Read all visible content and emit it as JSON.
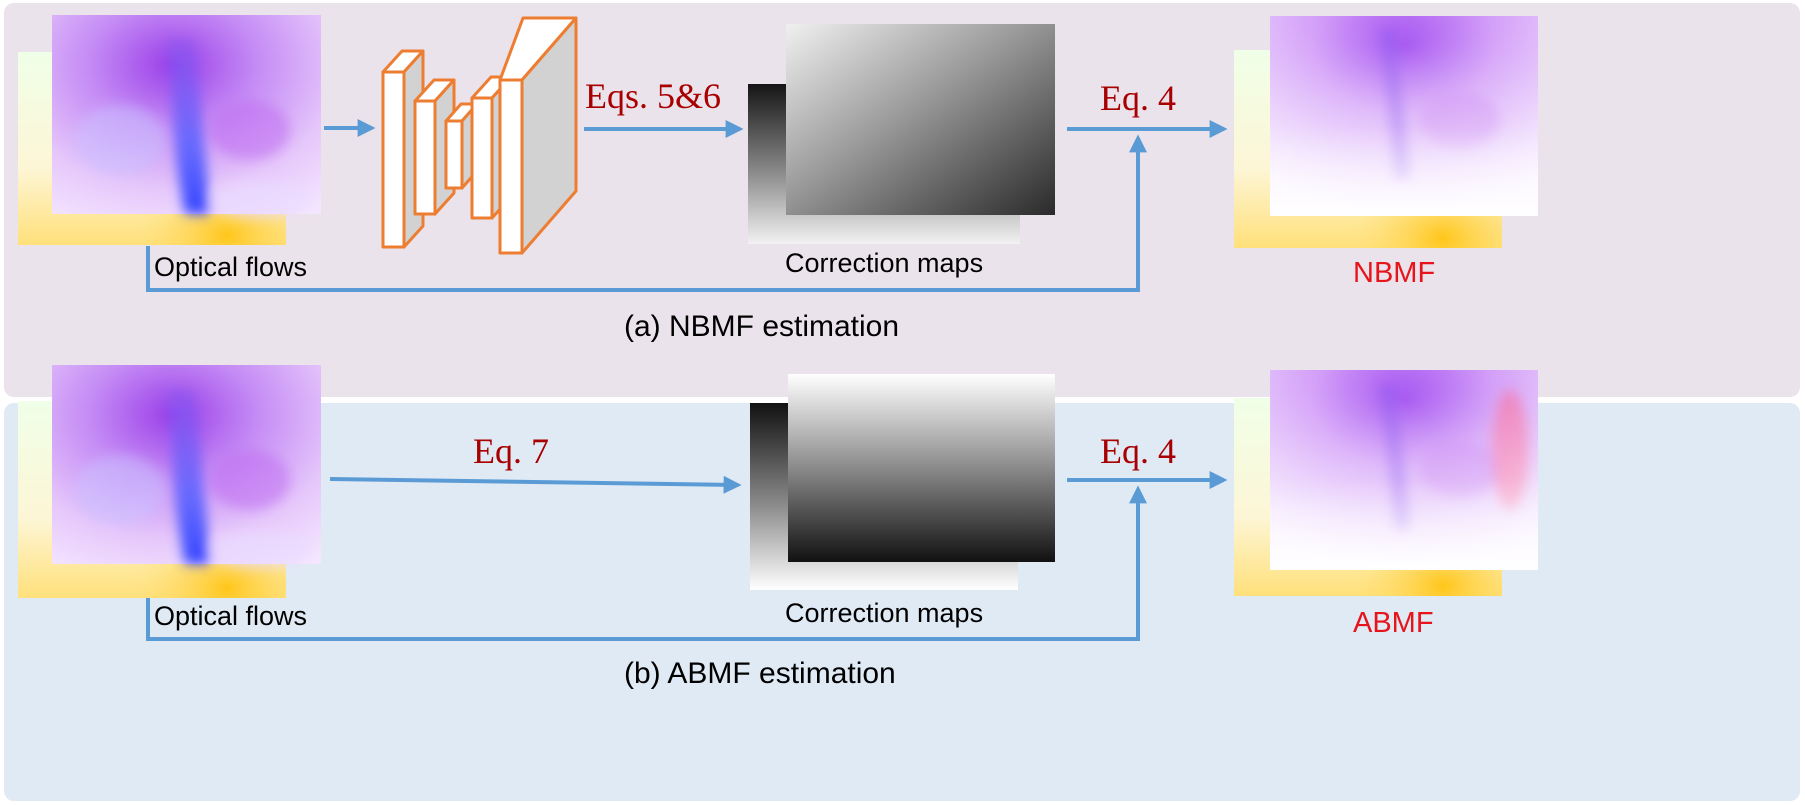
{
  "panel_a": {
    "input_label": "Optical flows",
    "eq_network": "Eqs. 5&6",
    "maps_label": "Correction maps",
    "eq_apply": "Eq. 4",
    "output_label": "NBMF",
    "caption": "(a) NBMF estimation"
  },
  "panel_b": {
    "input_label": "Optical flows",
    "eq_direct": "Eq. 7",
    "maps_label": "Correction maps",
    "eq_apply": "Eq. 4",
    "output_label": "ABMF",
    "caption": "(b) ABMF estimation"
  },
  "colors": {
    "arrow": "#5b9bd5",
    "equation": "#a80000",
    "output_label": "#e8141b",
    "network_border": "#ed7d31",
    "panel_a_bg": "#ebe3eb",
    "panel_b_bg": "#e0eaf5"
  }
}
